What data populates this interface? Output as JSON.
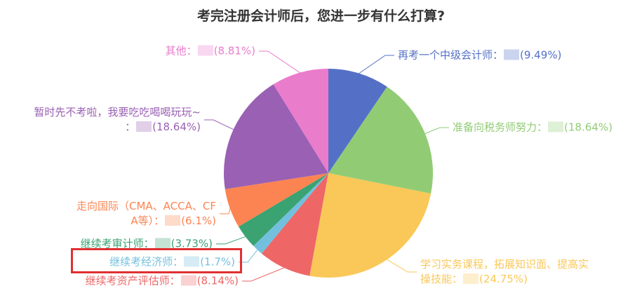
{
  "title": "考完注册会计师后，您进一步有什么打算?",
  "chart_data": {
    "type": "pie",
    "title": "考完注册会计师后，您进一步有什么打算?",
    "start_angle": "12-oclock",
    "direction": "clockwise",
    "legend_position": "none",
    "background": "#ffffff",
    "items": [
      {
        "name": "再考一个中级会计师",
        "value": 9.49,
        "pct_text": "(9.49%)",
        "color": "#5470c6",
        "label_lines": [
          "再考一个中级会计师："
        ]
      },
      {
        "name": "准备向税务师努力",
        "value": 18.64,
        "pct_text": "(18.64%)",
        "color": "#91cc75",
        "label_lines": [
          "准备向税务师努力："
        ]
      },
      {
        "name": "学习实务课程，拓展知识面、提高实操技能",
        "value": 24.75,
        "pct_text": "(24.75%)",
        "color": "#fac858",
        "label_lines": [
          "学习实务课程，拓展知识面、提高实",
          "操技能："
        ]
      },
      {
        "name": "继续考资产评估师",
        "value": 8.14,
        "pct_text": "(8.14%)",
        "color": "#ee6666",
        "label_lines": [
          "继续考资产评估师："
        ]
      },
      {
        "name": "继续考经济师",
        "value": 1.7,
        "pct_text": "(1.7%)",
        "color": "#73c0de",
        "label_lines": [
          "继续考经济师："
        ]
      },
      {
        "name": "继续考审计师",
        "value": 3.73,
        "pct_text": "(3.73%)",
        "color": "#3ba272",
        "label_lines": [
          "继续考审计师："
        ]
      },
      {
        "name": "走向国际（CMA、ACCA、CFA等）",
        "value": 6.1,
        "pct_text": "(6.1%)",
        "color": "#fc8452",
        "label_lines": [
          "走向国际（CMA、ACCA、CF",
          "A等）："
        ]
      },
      {
        "name": "暂时先不考啦，我要吃吃喝喝玩玩~",
        "value": 18.64,
        "pct_text": "(18.64%)",
        "color": "#9a60b4",
        "label_lines": [
          "暂时先不考啦，我要吃吃喝喝玩玩~",
          "："
        ]
      },
      {
        "name": "其他",
        "value": 8.81,
        "pct_text": "(8.81%)",
        "color": "#ea7ccc",
        "label_lines": [
          "其他："
        ]
      }
    ],
    "annotation": {
      "highlighted_item": "继续考经济师",
      "box_color": "#e03032"
    }
  }
}
